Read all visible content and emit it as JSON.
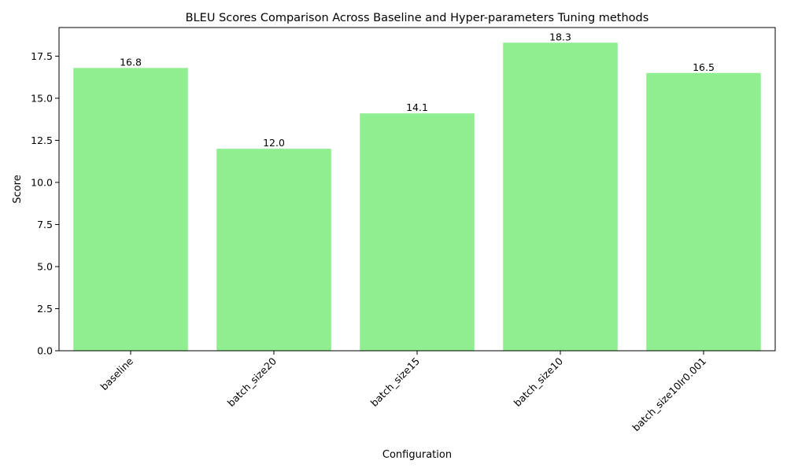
{
  "chart_data": {
    "type": "bar",
    "title": "BLEU Scores Comparison Across Baseline and Hyper-parameters Tuning methods",
    "xlabel": "Configuration",
    "ylabel": "Score",
    "categories": [
      "baseline",
      "batch_size20",
      "batch_size15",
      "batch_size10",
      "batch_size10lr0.001"
    ],
    "values": [
      16.8,
      12.0,
      14.1,
      18.3,
      16.5
    ],
    "value_labels": [
      "16.8",
      "12.0",
      "14.1",
      "18.3",
      "16.5"
    ],
    "ylim": [
      0,
      19.2
    ],
    "yticks": [
      0.0,
      2.5,
      5.0,
      7.5,
      10.0,
      12.5,
      15.0,
      17.5
    ],
    "ytick_labels": [
      "0.0",
      "2.5",
      "5.0",
      "7.5",
      "10.0",
      "12.5",
      "15.0",
      "17.5"
    ],
    "bar_color": "#90ee90",
    "grid": false,
    "legend": "none",
    "xtick_rotation_deg": 45
  }
}
